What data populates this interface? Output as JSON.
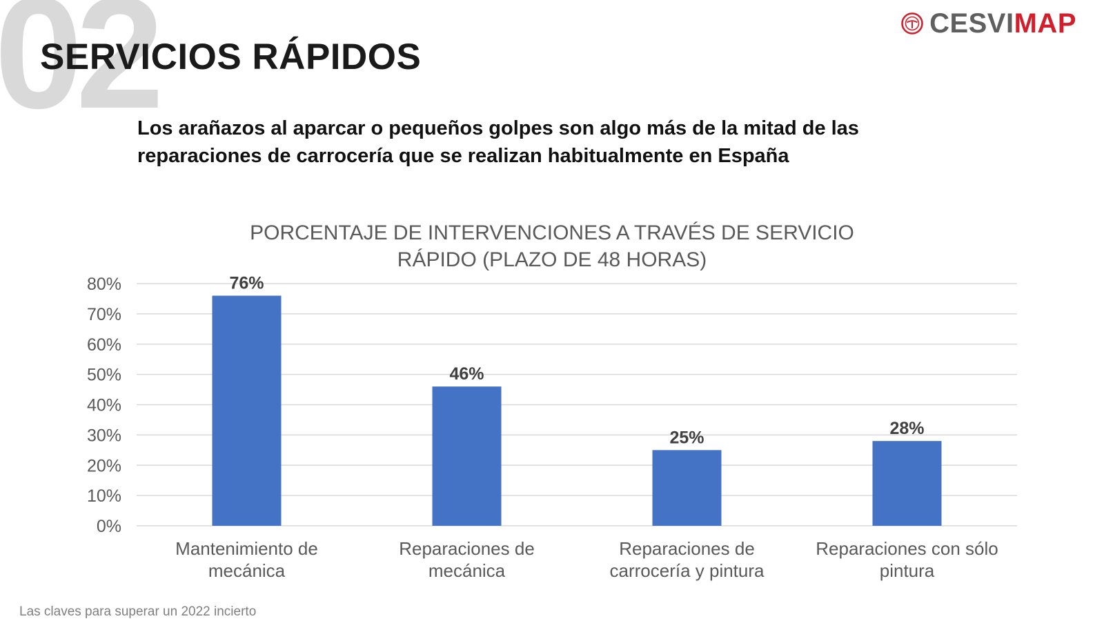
{
  "watermark": "02",
  "section_title": "SERVICIOS RÁPIDOS",
  "logo": {
    "part_a": "CESVI",
    "part_b": "MAP",
    "icon": "cesvimap-logo-icon",
    "color_a": "#5f5f5f",
    "color_b": "#d21f2c"
  },
  "subtitle": {
    "line1": "Los arañazos al aparcar o pequeños golpes son algo más de la mitad de las",
    "line2": "reparaciones de carrocería que se realizan habitualmente en España"
  },
  "footer": "Las claves para superar un 2022 incierto",
  "chart_data": {
    "type": "bar",
    "title_lines": [
      "PORCENTAJE DE INTERVENCIONES A TRAVÉS DE SERVICIO",
      "RÁPIDO (PLAZO DE 48 HORAS)"
    ],
    "categories": [
      [
        "Mantenimiento de",
        "mecánica"
      ],
      [
        "Reparaciones de",
        "mecánica"
      ],
      [
        "Reparaciones de",
        "carrocería y pintura"
      ],
      [
        "Reparaciones con sólo",
        "pintura"
      ]
    ],
    "values": [
      76,
      46,
      25,
      28
    ],
    "value_labels": [
      "76%",
      "46%",
      "25%",
      "28%"
    ],
    "y_ticks": [
      0,
      10,
      20,
      30,
      40,
      50,
      60,
      70,
      80
    ],
    "y_tick_labels": [
      "0%",
      "10%",
      "20%",
      "30%",
      "40%",
      "50%",
      "60%",
      "70%",
      "80%"
    ],
    "ylim": [
      0,
      80
    ],
    "grid": true,
    "bar_color": "#4472c4",
    "grid_color": "#d9d9d9"
  }
}
